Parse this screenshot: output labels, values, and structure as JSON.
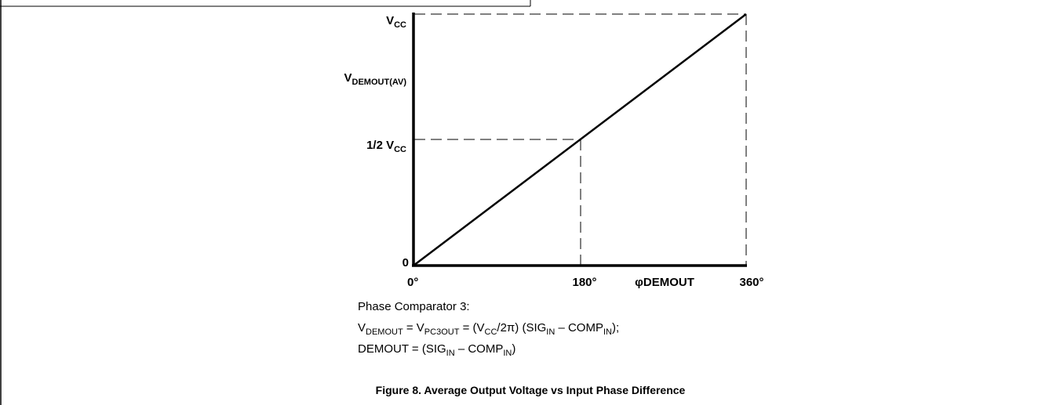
{
  "figure": {
    "y_labels": [
      [
        {
          "text": "V"
        },
        {
          "text": "CC",
          "sub": true
        }
      ],
      [
        {
          "text": "V"
        },
        {
          "text": "DEMOUT(AV)",
          "sub": true
        }
      ],
      [
        {
          "text": "1/2 V"
        },
        {
          "text": "CC",
          "sub": true
        }
      ],
      [
        {
          "text": "0"
        }
      ]
    ],
    "x_labels": [
      [
        {
          "text": "0°"
        }
      ],
      [
        {
          "text": "180°"
        }
      ],
      [
        {
          "text": "φDEMOUT"
        }
      ],
      [
        {
          "text": "360°"
        }
      ]
    ],
    "notes": [
      [
        {
          "text": "Phase Comparator 3:"
        }
      ],
      [
        {
          "text": "V"
        },
        {
          "text": "DEMOUT",
          "sub": true
        },
        {
          "text": " = V"
        },
        {
          "text": "PC3OUT",
          "sub": true
        },
        {
          "text": " = (V"
        },
        {
          "text": "CC",
          "sub": true
        },
        {
          "text": "/2π) (SIG"
        },
        {
          "text": "IN",
          "sub": true
        },
        {
          "text": " – COMP"
        },
        {
          "text": "IN",
          "sub": true
        },
        {
          "text": ");"
        }
      ],
      [
        {
          "text": "DEMOUT = (SIG"
        },
        {
          "text": "IN",
          "sub": true
        },
        {
          "text": " – COMP"
        },
        {
          "text": "IN",
          "sub": true
        },
        {
          "text": ")"
        }
      ]
    ],
    "caption": [
      {
        "text": "Figure 8. Average Output Voltage vs Input Phase Difference"
      }
    ]
  }
}
